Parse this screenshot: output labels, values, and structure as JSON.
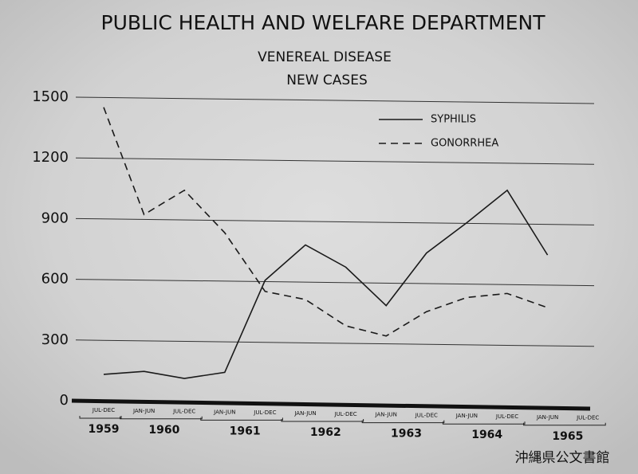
{
  "chart_data": {
    "type": "line",
    "title": "PUBLIC HEALTH AND WELFARE DEPARTMENT",
    "subtitle_lines": [
      "VENEREAL DISEASE",
      "NEW CASES"
    ],
    "categories": [
      "JUL-DEC",
      "JAN-JUN",
      "JUL-DEC",
      "JAN-JUN",
      "JUL-DEC",
      "JAN-JUN",
      "JUL-DEC",
      "JAN-JUN",
      "JUL-DEC",
      "JAN-JUN",
      "JUL-DEC",
      "JAN-JUN",
      "JUL-DEC"
    ],
    "year_groups": [
      "1959",
      "1960",
      "1961",
      "1962",
      "1963",
      "1964",
      "1965"
    ],
    "series": [
      {
        "name": "SYPHILIS",
        "color": "#1a1a1a",
        "dash": "solid",
        "values": [
          130,
          145,
          110,
          140,
          595,
          770,
          660,
          470,
          730,
          880,
          1040,
          720,
          null
        ]
      },
      {
        "name": "GONORRHEA",
        "color": "#1a1a1a",
        "dash": "dashed",
        "values": [
          1450,
          920,
          1040,
          830,
          540,
          500,
          370,
          320,
          440,
          510,
          530,
          460,
          null
        ]
      }
    ],
    "ylim": [
      0,
      1500
    ],
    "yticks": [
      0,
      300,
      600,
      900,
      1200,
      1500
    ],
    "grid": true,
    "legend": "upper right",
    "watermark": "沖縄県公文書館"
  }
}
